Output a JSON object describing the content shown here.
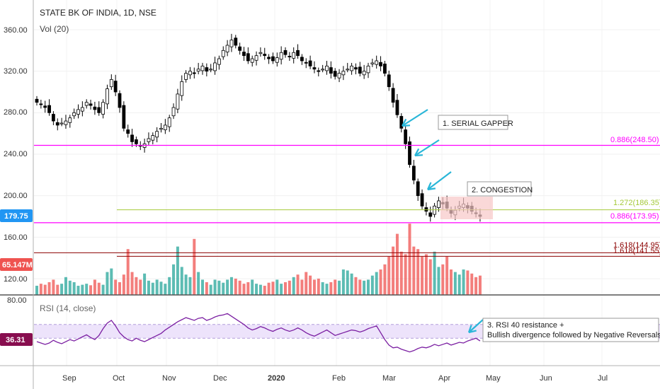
{
  "header": {
    "symbol_title": "STATE BK OF INDIA, 1D, NSE",
    "vol_label": "Vol (20)",
    "rsi_label": "RSI (14, close)"
  },
  "price_axis": {
    "ticks": [
      "360.00",
      "320.00",
      "280.00",
      "240.00",
      "200.00",
      "160.00",
      "120.00"
    ],
    "last_price_badge": "179.75",
    "volume_badge": "65.147M"
  },
  "rsi_axis": {
    "ticks": [
      "80.00"
    ],
    "rsi_badge": "36.31"
  },
  "time_axis": {
    "labels": [
      "Sep",
      "Oct",
      "Nov",
      "Dec",
      "2020",
      "Feb",
      "Mar",
      "Apr",
      "May",
      "Jun",
      "Jul"
    ]
  },
  "fib_labels": {
    "fib_0886_upper": "0.886(248.50)",
    "fib_1272": "1.272(186.35)",
    "fib_0886_lower": "0.886(173.95)",
    "fib_1618_a": "1.618(144.95)",
    "fib_1618_b": "1.618(141.55)"
  },
  "annotations": {
    "serial_gapper": "1. SERIAL GAPPER",
    "congestion": "2. CONGESTION",
    "rsi_note_line1": "3. RSI 40 resistance +",
    "rsi_note_line2": "Bullish divergence followed by Negative Reversals"
  },
  "colors": {
    "up": "#26a69a",
    "down": "#ef5350",
    "candle": "#000000",
    "magenta": "#ff00ff",
    "fib_green": "#a5c93a",
    "dark_red": "#8b0000",
    "rsi_line": "#7b1fa2",
    "rsi_band": "#ede3fb",
    "arrow": "#29b6d8",
    "price_badge": "#2196f3",
    "vol_badge": "#ef5350",
    "rsi_badge": "#880e4f"
  },
  "chart_data": [
    {
      "type": "candlestick",
      "title": "STATE BK OF INDIA, 1D, NSE",
      "ylim": [
        110,
        370
      ],
      "x_labels": [
        "Sep",
        "Oct",
        "Nov",
        "Dec",
        "2020",
        "Feb",
        "Mar",
        "Apr",
        "May",
        "Jun",
        "Jul"
      ],
      "close_approx": [
        290,
        288,
        285,
        280,
        272,
        268,
        270,
        272,
        275,
        280,
        283,
        285,
        290,
        287,
        283,
        280,
        290,
        303,
        312,
        300,
        285,
        265,
        260,
        252,
        250,
        248,
        250,
        255,
        258,
        262,
        265,
        268,
        275,
        285,
        298,
        310,
        318,
        320,
        318,
        322,
        325,
        320,
        322,
        328,
        332,
        340,
        345,
        350,
        345,
        340,
        335,
        330,
        332,
        335,
        338,
        335,
        332,
        330,
        333,
        338,
        336,
        334,
        338,
        335,
        330,
        328,
        325,
        322,
        320,
        322,
        325,
        318,
        315,
        318,
        320,
        322,
        325,
        322,
        318,
        320,
        325,
        328,
        330,
        325,
        318,
        305,
        290,
        278,
        265,
        250,
        230,
        215,
        200,
        190,
        185,
        180,
        190,
        195,
        192,
        188,
        183,
        186,
        190,
        192,
        188,
        185,
        183,
        180
      ],
      "horizontal_levels": [
        {
          "label": "0.886(248.50)",
          "value": 248.5
        },
        {
          "label": "1.272(186.35)",
          "value": 186.35
        },
        {
          "label": "0.886(173.95)",
          "value": 173.95
        },
        {
          "label": "1.618(144.95)",
          "value": 144.95
        },
        {
          "label": "1.618(141.55)",
          "value": 141.55
        }
      ],
      "last_price": 179.75
    },
    {
      "type": "bar",
      "name": "Vol (20)",
      "last_value": "65.147M",
      "relative_heights": [
        0.18,
        0.22,
        0.2,
        0.25,
        0.3,
        0.2,
        0.22,
        0.35,
        0.28,
        0.25,
        0.18,
        0.2,
        0.22,
        0.19,
        0.3,
        0.24,
        0.2,
        0.45,
        0.52,
        0.3,
        0.25,
        0.4,
        0.9,
        0.45,
        0.35,
        0.3,
        0.42,
        0.28,
        0.24,
        0.3,
        0.26,
        0.22,
        0.35,
        0.6,
        0.95,
        0.55,
        0.4,
        0.35,
        1.1,
        0.45,
        0.3,
        0.25,
        0.2,
        0.3,
        0.28,
        0.24,
        0.3,
        0.35,
        0.32,
        0.28,
        0.22,
        0.25,
        0.3,
        0.22,
        0.2,
        0.18,
        0.24,
        0.26,
        0.3,
        0.22,
        0.25,
        0.28,
        0.35,
        0.4,
        0.3,
        0.45,
        0.38,
        0.3,
        0.32,
        0.25,
        0.22,
        0.25,
        0.3,
        0.28,
        0.5,
        0.48,
        0.42,
        0.35,
        0.3,
        0.28,
        0.3,
        0.38,
        0.45,
        0.5,
        0.6,
        0.75,
        0.95,
        1.2,
        0.85,
        0.8,
        1.4,
        0.95,
        0.9,
        0.75,
        0.8,
        0.7,
        0.85,
        0.55,
        0.6,
        0.75,
        0.5,
        0.45,
        0.4,
        0.5,
        0.48,
        0.42,
        0.35,
        0.38
      ]
    },
    {
      "type": "line",
      "name": "RSI (14, close)",
      "band": [
        40,
        60
      ],
      "last_value": 36.31,
      "values": [
        35,
        33,
        31,
        33,
        37,
        34,
        32,
        35,
        38,
        36,
        39,
        42,
        45,
        41,
        38,
        44,
        54,
        62,
        66,
        58,
        48,
        42,
        38,
        36,
        40,
        37,
        35,
        38,
        41,
        44,
        47,
        52,
        56,
        60,
        64,
        67,
        70,
        68,
        66,
        69,
        70,
        66,
        68,
        71,
        73,
        74,
        76,
        72,
        68,
        64,
        60,
        55,
        52,
        54,
        57,
        55,
        52,
        50,
        53,
        55,
        52,
        50,
        52,
        55,
        52,
        48,
        45,
        43,
        46,
        49,
        52,
        48,
        44,
        46,
        48,
        50,
        52,
        51,
        49,
        51,
        54,
        56,
        58,
        48,
        38,
        30,
        26,
        27,
        24,
        22,
        20,
        22,
        25,
        27,
        26,
        28,
        31,
        29,
        31,
        33,
        30,
        32,
        34,
        33,
        36,
        38,
        40,
        36
      ]
    }
  ]
}
